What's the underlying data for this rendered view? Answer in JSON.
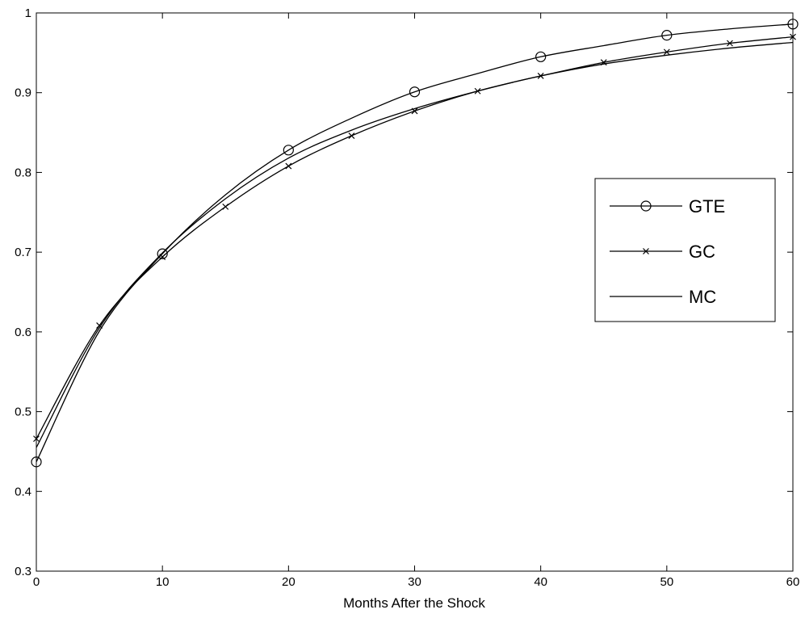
{
  "chart_data": {
    "type": "line",
    "title": "",
    "xlabel": "Months After the Shock",
    "ylabel": "",
    "xlim": [
      0,
      60
    ],
    "ylim": [
      0.3,
      1
    ],
    "xticks": [
      0,
      10,
      20,
      30,
      40,
      50,
      60
    ],
    "yticks": [
      0.3,
      0.4,
      0.5,
      0.6,
      0.7,
      0.8,
      0.9,
      1
    ],
    "ytick_labels": [
      "0.3",
      "0.4",
      "0.5",
      "0.6",
      "0.7",
      "0.8",
      "0.9",
      "1"
    ],
    "grid": false,
    "legend_position": "right",
    "x": [
      0,
      5,
      10,
      15,
      20,
      25,
      30,
      35,
      40,
      45,
      50,
      55,
      60
    ],
    "series": [
      {
        "name": "GTE",
        "marker": "circle",
        "marker_x": [
          0,
          10,
          20,
          30,
          40,
          50,
          60
        ],
        "values": [
          0.437,
          0.601,
          0.698,
          0.772,
          0.828,
          0.868,
          0.901,
          0.924,
          0.945,
          0.959,
          0.972,
          0.98,
          0.986
        ]
      },
      {
        "name": "GC",
        "marker": "x",
        "marker_x": [
          0,
          5,
          10,
          15,
          20,
          25,
          30,
          35,
          40,
          45,
          50,
          55,
          60
        ],
        "values": [
          0.466,
          0.608,
          0.694,
          0.757,
          0.808,
          0.846,
          0.877,
          0.902,
          0.921,
          0.938,
          0.951,
          0.962,
          0.97
        ]
      },
      {
        "name": "MC",
        "marker": "none",
        "values": [
          0.455,
          0.605,
          0.699,
          0.767,
          0.818,
          0.853,
          0.88,
          0.902,
          0.921,
          0.936,
          0.947,
          0.956,
          0.963
        ]
      }
    ]
  }
}
